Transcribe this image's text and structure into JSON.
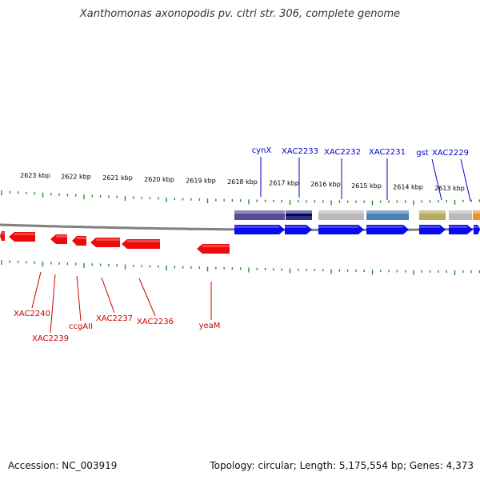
{
  "title": "Xanthomonas axonopodis pv. citri str. 306, complete genome",
  "footer": {
    "accession": "Accession: NC_003919",
    "summary": "Topology: circular; Length: 5,175,554 bp; Genes: 4,373"
  },
  "colors": {
    "forward_gene": "#0a0aee",
    "reverse_gene": "#ee0a0a",
    "tick": "#2a8a2a",
    "backbone": "#808080",
    "forward_label": "#0000cc",
    "reverse_label": "#cc0000"
  },
  "ruler_labels": [
    "2623 kbp",
    "2622 kbp",
    "2621 kbp",
    "2620 kbp",
    "2619 kbp",
    "2618 kbp",
    "2617 kbp",
    "2616 kbp",
    "2615 kbp",
    "2614 kbp",
    "2613 kbp"
  ],
  "forward_genes": [
    "cynX",
    "XAC2233",
    "XAC2232",
    "XAC2231",
    "gst",
    "XAC2229"
  ],
  "reverse_genes": [
    "XAC2240",
    "XAC2239",
    "ccgAII",
    "XAC2237",
    "XAC2236",
    "yeaM"
  ],
  "cog_colors": [
    "#5a4b9a",
    "#2d2d7a",
    "#b8b8b8",
    "#4a82b4",
    "#b8a860",
    "#b8b8b8",
    "#f09020"
  ]
}
